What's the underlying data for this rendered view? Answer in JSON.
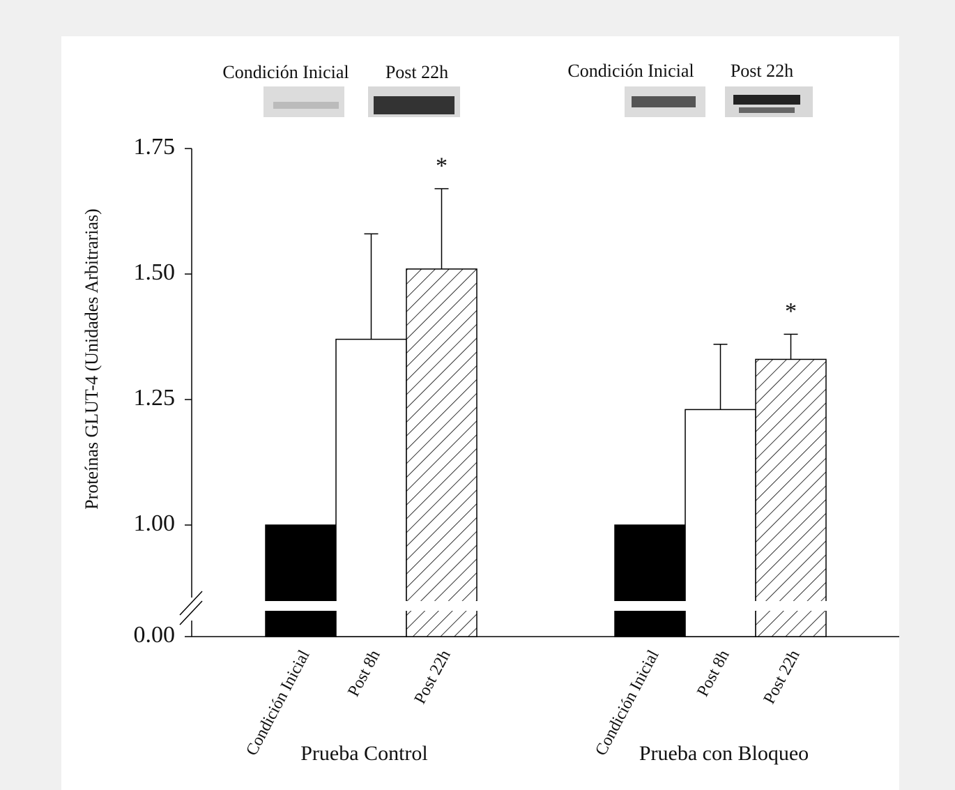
{
  "chart_data": {
    "type": "bar",
    "y_label": "Proteínas GLUT-4 (Unidades Arbitrarias)",
    "categories": [
      "Prueba Control",
      "Prueba con Bloqueo"
    ],
    "series": [
      {
        "name": "Condición Inicial",
        "color": "#000000",
        "values": [
          1.0,
          1.0
        ]
      },
      {
        "name": "Post 8h",
        "color": "#ffffff",
        "values": [
          1.37,
          1.23
        ],
        "errors": [
          0.21,
          0.13
        ]
      },
      {
        "name": "Post 22h",
        "color": "hatch",
        "values": [
          1.51,
          1.33
        ],
        "errors": [
          0.16,
          0.05
        ]
      }
    ],
    "annotations": [
      "*",
      "*"
    ],
    "ylim": [
      0,
      1.75
    ],
    "ybreak": [
      0,
      0.85
    ],
    "yticks": [
      {
        "value": 0,
        "label": "0.00"
      },
      {
        "value": 1,
        "label": "1.00"
      },
      1.25,
      {
        "value": 1.5,
        "label": "1.50"
      },
      1.75
    ],
    "grid": false
  }
}
